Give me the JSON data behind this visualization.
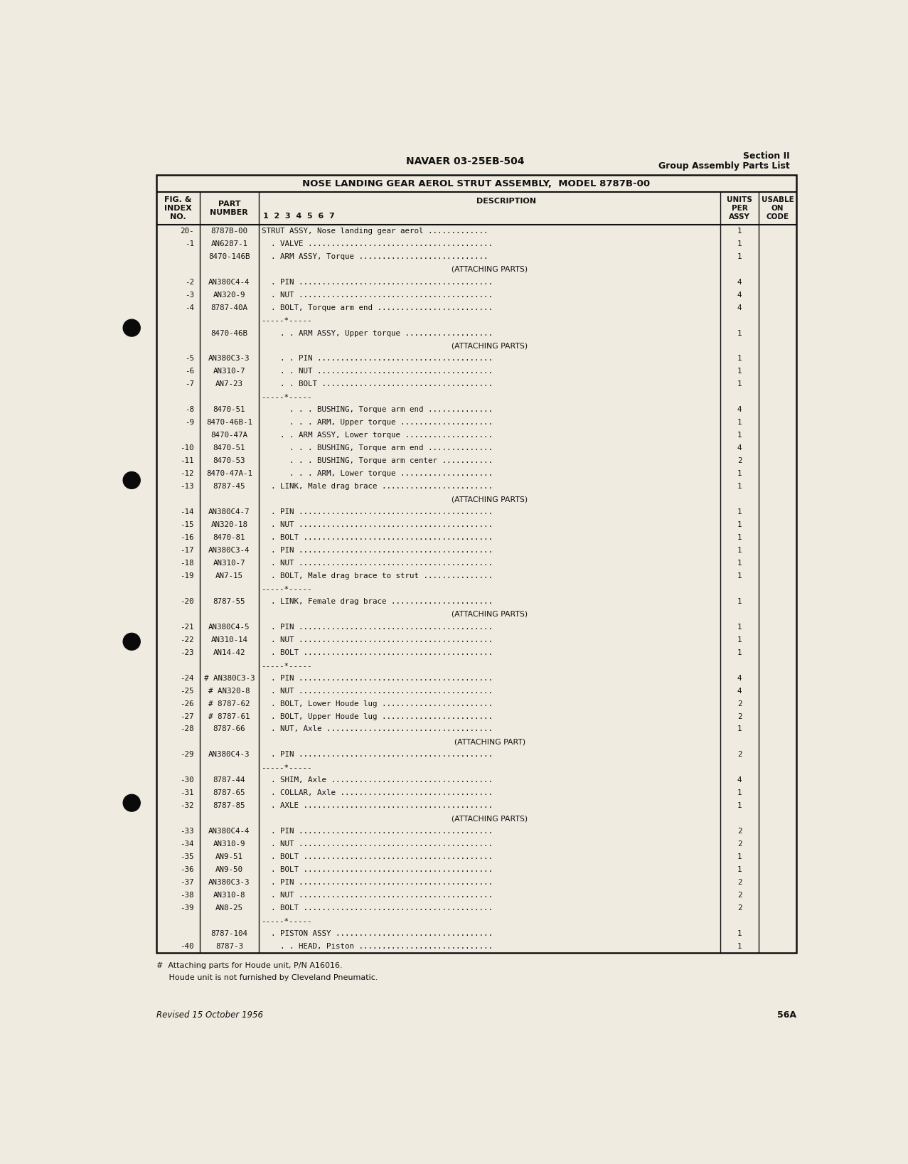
{
  "bg_color": "#f0ebe0",
  "page_title_center": "NAVAER 03-25EB-504",
  "page_title_right1": "Section II",
  "page_title_right2": "Group Assembly Parts List",
  "table_title": "NOSE LANDING GEAR AEROL STRUT ASSEMBLY,  MODEL 8787B-00",
  "rows": [
    {
      "fig": "20-",
      "part": "8787B-00",
      "desc": "STRUT ASSY, Nose landing gear aerol .............",
      "units": "1"
    },
    {
      "fig": "-1",
      "part": "AN6287-1",
      "desc": "  . VALVE ........................................",
      "units": "1"
    },
    {
      "fig": "",
      "part": "8470-146B",
      "desc": "  . ARM ASSY, Torque ............................",
      "units": "1"
    },
    {
      "fig": "",
      "part": "",
      "desc": "      (ATTACHING PARTS)",
      "units": "",
      "attaching": true
    },
    {
      "fig": "-2",
      "part": "AN380C4-4",
      "desc": "  . PIN ..........................................",
      "units": "4"
    },
    {
      "fig": "-3",
      "part": "AN320-9",
      "desc": "  . NUT ..........................................",
      "units": "4"
    },
    {
      "fig": "-4",
      "part": "8787-40A",
      "desc": "  . BOLT, Torque arm end .........................",
      "units": "4"
    },
    {
      "fig": "",
      "part": "",
      "desc": "        -----*-----",
      "units": "",
      "separator": true
    },
    {
      "fig": "",
      "part": "8470-46B",
      "desc": "    . . ARM ASSY, Upper torque ...................",
      "units": "1"
    },
    {
      "fig": "",
      "part": "",
      "desc": "          (ATTACHING PARTS)",
      "units": "",
      "attaching": true
    },
    {
      "fig": "-5",
      "part": "AN380C3-3",
      "desc": "    . . PIN ......................................",
      "units": "1"
    },
    {
      "fig": "-6",
      "part": "AN310-7",
      "desc": "    . . NUT ......................................",
      "units": "1"
    },
    {
      "fig": "-7",
      "part": "AN7-23",
      "desc": "    . . BOLT .....................................",
      "units": "1"
    },
    {
      "fig": "",
      "part": "",
      "desc": "        -----*-----",
      "units": "",
      "separator": true
    },
    {
      "fig": "-8",
      "part": "8470-51",
      "desc": "      . . . BUSHING, Torque arm end ..............",
      "units": "4"
    },
    {
      "fig": "-9",
      "part": "8470-46B-1",
      "desc": "      . . . ARM, Upper torque ....................",
      "units": "1"
    },
    {
      "fig": "",
      "part": "8470-47A",
      "desc": "    . . ARM ASSY, Lower torque ...................",
      "units": "1"
    },
    {
      "fig": "-10",
      "part": "8470-51",
      "desc": "      . . . BUSHING, Torque arm end ..............",
      "units": "4"
    },
    {
      "fig": "-11",
      "part": "8470-53",
      "desc": "      . . . BUSHING, Torque arm center ...........",
      "units": "2"
    },
    {
      "fig": "-12",
      "part": "8470-47A-1",
      "desc": "      . . . ARM, Lower torque ....................",
      "units": "1"
    },
    {
      "fig": "-13",
      "part": "8787-45",
      "desc": "  . LINK, Male drag brace ........................",
      "units": "1"
    },
    {
      "fig": "",
      "part": "",
      "desc": "      (ATTACHING PARTS)",
      "units": "",
      "attaching": true
    },
    {
      "fig": "-14",
      "part": "AN380C4-7",
      "desc": "  . PIN ..........................................",
      "units": "1"
    },
    {
      "fig": "-15",
      "part": "AN320-18",
      "desc": "  . NUT ..........................................",
      "units": "1"
    },
    {
      "fig": "-16",
      "part": "8470-81",
      "desc": "  . BOLT .........................................",
      "units": "1"
    },
    {
      "fig": "-17",
      "part": "AN380C3-4",
      "desc": "  . PIN ..........................................",
      "units": "1"
    },
    {
      "fig": "-18",
      "part": "AN310-7",
      "desc": "  . NUT ..........................................",
      "units": "1"
    },
    {
      "fig": "-19",
      "part": "AN7-15",
      "desc": "  . BOLT, Male drag brace to strut ...............",
      "units": "1"
    },
    {
      "fig": "",
      "part": "",
      "desc": "        -----*-----",
      "units": "",
      "separator": true
    },
    {
      "fig": "-20",
      "part": "8787-55",
      "desc": "  . LINK, Female drag brace ......................",
      "units": "1"
    },
    {
      "fig": "",
      "part": "",
      "desc": "      (ATTACHING PARTS)",
      "units": "",
      "attaching": true
    },
    {
      "fig": "-21",
      "part": "AN380C4-5",
      "desc": "  . PIN ..........................................",
      "units": "1"
    },
    {
      "fig": "-22",
      "part": "AN310-14",
      "desc": "  . NUT ..........................................",
      "units": "1"
    },
    {
      "fig": "-23",
      "part": "AN14-42",
      "desc": "  . BOLT .........................................",
      "units": "1"
    },
    {
      "fig": "",
      "part": "",
      "desc": "        -----*-----",
      "units": "",
      "separator": true
    },
    {
      "fig": "-24",
      "part": "# AN380C3-3",
      "desc": "  . PIN ..........................................",
      "units": "4"
    },
    {
      "fig": "-25",
      "part": "# AN320-8",
      "desc": "  . NUT ..........................................",
      "units": "4"
    },
    {
      "fig": "-26",
      "part": "# 8787-62",
      "desc": "  . BOLT, Lower Houde lug ........................",
      "units": "2"
    },
    {
      "fig": "-27",
      "part": "# 8787-61",
      "desc": "  . BOLT, Upper Houde lug ........................",
      "units": "2"
    },
    {
      "fig": "-28",
      "part": "8787-66",
      "desc": "  . NUT, Axle ....................................",
      "units": "1"
    },
    {
      "fig": "",
      "part": "",
      "desc": "      (ATTACHING PART)",
      "units": "",
      "attaching": true
    },
    {
      "fig": "-29",
      "part": "AN380C4-3",
      "desc": "  . PIN ..........................................",
      "units": "2"
    },
    {
      "fig": "",
      "part": "",
      "desc": "        -----*-----",
      "units": "",
      "separator": true
    },
    {
      "fig": "-30",
      "part": "8787-44",
      "desc": "  . SHIM, Axle ...................................",
      "units": "4"
    },
    {
      "fig": "-31",
      "part": "8787-65",
      "desc": "  . COLLAR, Axle .................................",
      "units": "1"
    },
    {
      "fig": "-32",
      "part": "8787-85",
      "desc": "  . AXLE .........................................",
      "units": "1"
    },
    {
      "fig": "",
      "part": "",
      "desc": "      (ATTACHING PARTS)",
      "units": "",
      "attaching": true
    },
    {
      "fig": "-33",
      "part": "AN380C4-4",
      "desc": "  . PIN ..........................................",
      "units": "2"
    },
    {
      "fig": "-34",
      "part": "AN310-9",
      "desc": "  . NUT ..........................................",
      "units": "2"
    },
    {
      "fig": "-35",
      "part": "AN9-51",
      "desc": "  . BOLT .........................................",
      "units": "1"
    },
    {
      "fig": "-36",
      "part": "AN9-50",
      "desc": "  . BOLT .........................................",
      "units": "1"
    },
    {
      "fig": "-37",
      "part": "AN380C3-3",
      "desc": "  . PIN ..........................................",
      "units": "2"
    },
    {
      "fig": "-38",
      "part": "AN310-8",
      "desc": "  . NUT ..........................................",
      "units": "2"
    },
    {
      "fig": "-39",
      "part": "AN8-25",
      "desc": "  . BOLT .........................................",
      "units": "2"
    },
    {
      "fig": "",
      "part": "",
      "desc": "        -----*-----",
      "units": "",
      "separator": true
    },
    {
      "fig": "",
      "part": "8787-104",
      "desc": "  . PISTON ASSY ..................................",
      "units": "1"
    },
    {
      "fig": "-40",
      "part": "8787-3",
      "desc": "    . . HEAD, Piston .............................",
      "units": "1"
    }
  ],
  "footnote1": "#  Attaching parts for Houde unit, P/N A16016.",
  "footnote2": "     Houde unit is not furnished by Cleveland Pneumatic.",
  "footer_left": "Revised 15 October 1956",
  "footer_right": "56A"
}
